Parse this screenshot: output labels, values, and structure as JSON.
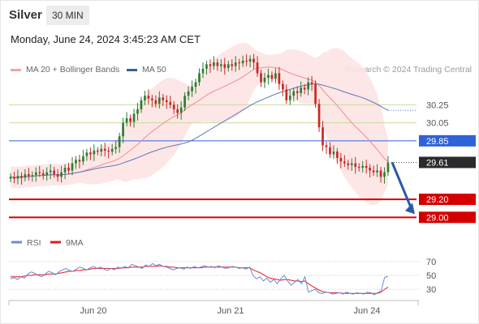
{
  "header": {
    "instrument": "Silver",
    "timeframe": "30 MIN",
    "datetime": "Monday, June 24, 2024 3:45:23 AM CET"
  },
  "legend": {
    "items": [
      {
        "label": "MA 20 + Bollinger Bands",
        "color": "#f4a3a3"
      },
      {
        "label": "MA 50",
        "color": "#3a5d9c"
      }
    ],
    "credit": "Research © 2024 Trading Central"
  },
  "colors": {
    "up": "#2e7d32",
    "down": "#c62828",
    "ma20": "#f08c8c",
    "ma50": "#5b78b8",
    "band_fill": "#fde3e3",
    "resistance": "#c5dd9b",
    "pivot": "#2f62d6",
    "support": "#d40000",
    "last": "#2b2b2b",
    "arrow": "#2a5aa6",
    "rsi": "#6b8ad6",
    "rsi_ma": "#e41b1b"
  },
  "chart_data": [
    {
      "type": "candlestick",
      "ylim": [
        28.85,
        30.55
      ],
      "x_ticks": [
        "Jun 20",
        "Jun 21",
        "Jun 24"
      ],
      "levels": [
        {
          "label": "30.25",
          "value": 30.25,
          "kind": "resistance"
        },
        {
          "label": "30.05",
          "value": 30.05,
          "kind": "resistance"
        },
        {
          "label": "29.85",
          "value": 29.85,
          "kind": "pivot"
        },
        {
          "label": "29.61",
          "value": 29.61,
          "kind": "last"
        },
        {
          "label": "29.20",
          "value": 29.2,
          "kind": "support"
        },
        {
          "label": "29.00",
          "value": 29.0,
          "kind": "support"
        }
      ],
      "forecast_arrow": {
        "from": 29.61,
        "to": 29.0
      },
      "series": [
        {
          "name": "MA 20 + Bollinger Bands"
        },
        {
          "name": "MA 50"
        }
      ],
      "close": [
        29.45,
        29.43,
        29.46,
        29.44,
        29.48,
        29.46,
        29.47,
        29.5,
        29.49,
        29.47,
        29.5,
        29.52,
        29.48,
        29.45,
        29.5,
        29.55,
        29.52,
        29.6,
        29.64,
        29.62,
        29.68,
        29.72,
        29.7,
        29.74,
        29.73,
        29.76,
        29.74,
        29.73,
        29.76,
        29.78,
        29.9,
        30.05,
        30.1,
        30.06,
        30.15,
        30.2,
        30.3,
        30.35,
        30.32,
        30.3,
        30.26,
        30.33,
        30.3,
        30.28,
        30.25,
        30.2,
        30.16,
        30.22,
        30.35,
        30.4,
        30.45,
        30.5,
        30.6,
        30.65,
        30.7,
        30.68,
        30.72,
        30.68,
        30.7,
        30.66,
        30.7,
        30.68,
        30.72,
        30.71,
        30.74,
        30.73,
        30.76,
        30.72,
        30.6,
        30.5,
        30.55,
        30.58,
        30.54,
        30.6,
        30.48,
        30.42,
        30.3,
        30.35,
        30.4,
        30.38,
        30.44,
        30.42,
        30.5,
        30.48,
        30.26,
        30.0,
        29.8,
        29.78,
        29.7,
        29.73,
        29.66,
        29.62,
        29.6,
        29.58,
        29.6,
        29.56,
        29.55,
        29.57,
        29.55,
        29.52,
        29.5,
        29.52,
        29.45,
        29.5,
        29.61
      ]
    },
    {
      "type": "line",
      "title": "RSI",
      "ylim": [
        15,
        85
      ],
      "y_ticks": [
        70,
        50,
        30
      ],
      "series": [
        {
          "name": "RSI",
          "values": [
            45,
            47,
            44,
            48,
            46,
            52,
            55,
            53,
            50,
            48,
            52,
            56,
            54,
            51,
            55,
            58,
            60,
            57,
            56,
            59,
            62,
            60,
            58,
            61,
            63,
            60,
            62,
            59,
            57,
            60,
            58,
            62,
            60,
            63,
            61,
            66,
            64,
            62,
            60,
            65,
            63,
            67,
            64,
            66,
            63,
            62,
            60,
            58,
            60,
            61,
            59,
            62,
            60,
            63,
            61,
            62,
            64,
            62,
            63,
            61,
            64,
            62,
            60,
            61,
            63,
            62,
            60,
            61,
            59,
            62,
            50,
            45,
            48,
            42,
            46,
            40,
            44,
            38,
            45,
            50,
            42,
            36,
            40,
            44,
            38,
            48,
            26,
            28,
            30,
            25,
            24,
            26,
            25,
            23,
            24,
            25,
            23,
            26,
            24,
            23,
            25,
            24,
            23,
            26,
            25,
            22,
            25,
            28,
            47,
            49
          ]
        },
        {
          "name": "9MA",
          "values": [
            48,
            48,
            48,
            48,
            49,
            50,
            50,
            51,
            51,
            51,
            51,
            52,
            52,
            52,
            53,
            54,
            55,
            56,
            56,
            57,
            57,
            58,
            58,
            59,
            60,
            60,
            60,
            60,
            60,
            60,
            60,
            60,
            61,
            61,
            61,
            62,
            62,
            62,
            62,
            63,
            63,
            63,
            63,
            64,
            63,
            63,
            62,
            62,
            61,
            61,
            61,
            61,
            61,
            61,
            61,
            61,
            62,
            62,
            62,
            62,
            62,
            62,
            62,
            62,
            62,
            62,
            61,
            61,
            61,
            61,
            58,
            56,
            54,
            51,
            48,
            46,
            45,
            44,
            43,
            44,
            44,
            43,
            42,
            42,
            41,
            42,
            38,
            35,
            32,
            29,
            27,
            26,
            25,
            25,
            25,
            25,
            24,
            24,
            24,
            24,
            24,
            24,
            24,
            24,
            24,
            24,
            24,
            26,
            30,
            33
          ]
        }
      ]
    }
  ]
}
